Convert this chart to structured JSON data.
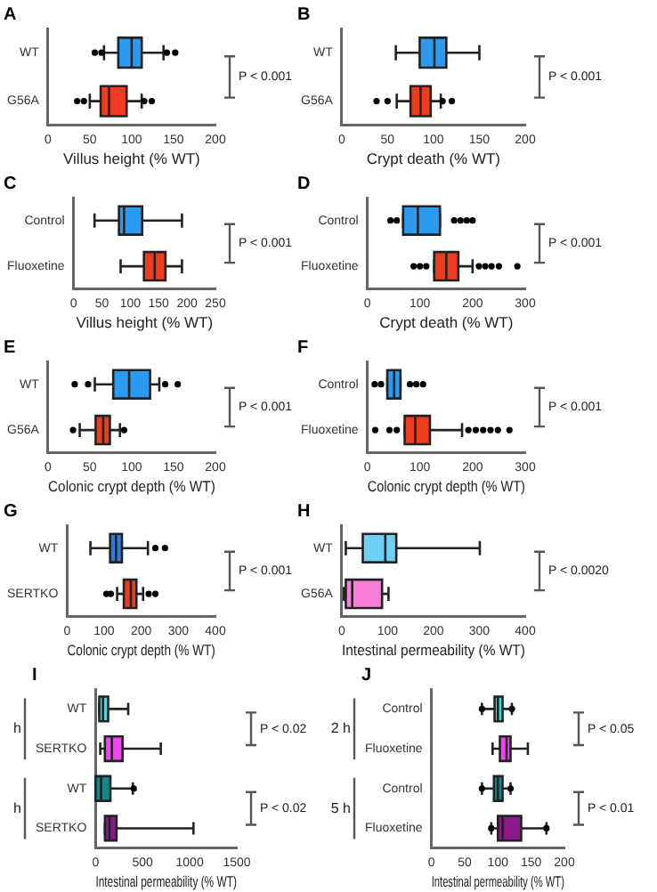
{
  "chart_data": [
    {
      "type": "box",
      "title": "A",
      "orientation": "horizontal",
      "categories": [
        "WT",
        "G56A"
      ],
      "colors": [
        "#2b9af3",
        "#f03c1e"
      ],
      "boxes": [
        {
          "low": 67,
          "q1": 84,
          "median": 100,
          "q3": 112,
          "high": 138,
          "outliers": [
            56,
            64,
            142,
            152
          ]
        },
        {
          "low": 50,
          "q1": 63,
          "median": 73,
          "q3": 94,
          "high": 112,
          "outliers": [
            35,
            43,
            115,
            124
          ]
        }
      ],
      "xlabel": "Villus height (% WT)",
      "xlim": [
        0,
        200
      ],
      "xticks": [
        0,
        50,
        100,
        150,
        200
      ],
      "annotations": [
        "P < 0.001"
      ]
    },
    {
      "type": "box",
      "title": "B",
      "orientation": "horizontal",
      "categories": [
        "WT",
        "G56A"
      ],
      "colors": [
        "#2b9af3",
        "#f03c1e"
      ],
      "boxes": [
        {
          "low": 59,
          "q1": 85,
          "median": 101,
          "q3": 114,
          "high": 150
        },
        {
          "low": 60,
          "q1": 75,
          "median": 86,
          "q3": 97,
          "high": 108,
          "outliers": [
            38,
            50,
            110,
            120
          ]
        }
      ],
      "xlabel": "Crypt death (% WT)",
      "xlim": [
        0,
        200
      ],
      "xticks": [
        0,
        50,
        100,
        150,
        200
      ],
      "annotations": [
        "P < 0.001"
      ]
    },
    {
      "type": "box",
      "title": "C",
      "orientation": "horizontal",
      "categories": [
        "Control",
        "Fluoxetine"
      ],
      "colors": [
        "#2b9af3",
        "#f03c1e"
      ],
      "boxes": [
        {
          "low": 37,
          "q1": 80,
          "median": 89,
          "q3": 121,
          "high": 191
        },
        {
          "low": 83,
          "q1": 124,
          "median": 143,
          "q3": 162,
          "high": 191
        }
      ],
      "xlabel": "Villus height (% WT)",
      "xlim": [
        0,
        250
      ],
      "xticks": [
        0,
        50,
        100,
        150,
        200,
        250
      ],
      "annotations": [
        "P < 0.001"
      ]
    },
    {
      "type": "box",
      "title": "D",
      "orientation": "horizontal",
      "categories": [
        "Control",
        "Fluoxetine"
      ],
      "colors": [
        "#2b9af3",
        "#f03c1e"
      ],
      "boxes": [
        {
          "low": 68,
          "q1": 68,
          "median": 96,
          "q3": 138,
          "high": 138,
          "outliers": [
            44,
            56,
            165,
            177,
            189,
            200
          ]
        },
        {
          "low": 127,
          "q1": 127,
          "median": 150,
          "q3": 173,
          "high": 200,
          "outliers": [
            88,
            100,
            112,
            212,
            224,
            236,
            250,
            285
          ]
        }
      ],
      "xlabel": "Crypt death (% WT)",
      "xlim": [
        0,
        300
      ],
      "xticks": [
        0,
        100,
        200,
        300
      ],
      "annotations": [
        "P < 0.001"
      ]
    },
    {
      "type": "box",
      "title": "E",
      "orientation": "horizontal",
      "categories": [
        "WT",
        "G56A"
      ],
      "colors": [
        "#2b9af3",
        "#f03c1e"
      ],
      "boxes": [
        {
          "low": 56,
          "q1": 78,
          "median": 97,
          "q3": 122,
          "high": 133,
          "outliers": [
            32,
            48,
            140,
            155
          ]
        },
        {
          "low": 38,
          "q1": 57,
          "median": 66,
          "q3": 74,
          "high": 86,
          "outliers": [
            30,
            91
          ]
        }
      ],
      "xlabel": "Colonic crypt depth (% WT)",
      "xlim": [
        0,
        200
      ],
      "xticks": [
        0,
        50,
        100,
        150,
        200
      ],
      "annotations": [
        "P < 0.001"
      ]
    },
    {
      "type": "box",
      "title": "F",
      "orientation": "horizontal",
      "categories": [
        "Control",
        "Fluoxetine"
      ],
      "colors": [
        "#2b9af3",
        "#f03c1e"
      ],
      "boxes": [
        {
          "low": 38,
          "q1": 38,
          "median": 51,
          "q3": 63,
          "high": 63,
          "outliers": [
            14,
            26,
            81,
            93,
            106
          ]
        },
        {
          "low": 71,
          "q1": 71,
          "median": 91,
          "q3": 119,
          "high": 180,
          "outliers": [
            15,
            42,
            56,
            192,
            206,
            220,
            234,
            248,
            270
          ]
        }
      ],
      "xlabel": "Colonic crypt depth (% WT)",
      "xlim": [
        0,
        300
      ],
      "xticks": [
        0,
        100,
        200,
        300
      ],
      "annotations": [
        "P < 0.001"
      ]
    },
    {
      "type": "box",
      "title": "G",
      "orientation": "horizontal",
      "categories": [
        "WT",
        "SERTKO"
      ],
      "colors": [
        "#2b7fd8",
        "#e8401c"
      ],
      "boxes": [
        {
          "low": 63,
          "q1": 116,
          "median": 132,
          "q3": 148,
          "high": 218,
          "outliers": [
            238,
            264
          ]
        },
        {
          "low": 135,
          "q1": 153,
          "median": 172,
          "q3": 187,
          "high": 205,
          "outliers": [
            106,
            118,
            220,
            238
          ]
        }
      ],
      "xlabel": "Colonic crypt depth (% WT)",
      "xlim": [
        0,
        400
      ],
      "xticks": [
        0,
        100,
        200,
        300,
        400
      ],
      "annotations": [
        "P < 0.001"
      ]
    },
    {
      "type": "box",
      "title": "H",
      "orientation": "horizontal",
      "categories": [
        "WT",
        "G56A"
      ],
      "colors": [
        "#6fd0f5",
        "#f77fd8"
      ],
      "boxes": [
        {
          "low": 9,
          "q1": 46,
          "median": 95,
          "q3": 119,
          "high": 301
        },
        {
          "low": 5,
          "q1": 9,
          "median": 23,
          "q3": 88,
          "high": 102
        }
      ],
      "xlabel": "Intestinal permeability (% WT)",
      "xlim": [
        0,
        400
      ],
      "xticks": [
        0,
        100,
        200,
        300,
        400
      ],
      "annotations": [
        "P < 0.0020"
      ]
    },
    {
      "type": "box",
      "title": "I",
      "orientation": "horizontal",
      "categories": [
        "WT",
        "SERTKO",
        "WT",
        "SERTKO"
      ],
      "colors": [
        "#33e0e8",
        "#f542f5",
        "#0d8a8a",
        "#8a1a8a"
      ],
      "boxes": [
        {
          "low": 40,
          "q1": 40,
          "median": 79,
          "q3": 134,
          "high": 347
        },
        {
          "low": 50,
          "q1": 99,
          "median": 173,
          "q3": 287,
          "high": 693
        },
        {
          "low": 0,
          "q1": 0,
          "median": 59,
          "q3": 158,
          "high": 396,
          "outliers": [
            406
          ]
        },
        {
          "low": 100,
          "q1": 100,
          "median": 149,
          "q3": 223,
          "high": 1040
        }
      ],
      "xlabel": "Intestinal permeability (% WT)",
      "xlim": [
        0,
        1500
      ],
      "xticks": [
        0,
        500,
        1000,
        1500
      ],
      "annotations": [
        "P < 0.02",
        "P < 0.02",
        "h",
        "h"
      ]
    },
    {
      "type": "box",
      "title": "J",
      "orientation": "horizontal",
      "categories": [
        "Control",
        "Fluoxetine",
        "Control",
        "Fluoxetine"
      ],
      "colors": [
        "#33e0e8",
        "#f542f5",
        "#0d8a8a",
        "#8a1a8a"
      ],
      "boxes": [
        {
          "low": 76,
          "q1": 95,
          "median": 100,
          "q3": 107,
          "high": 121,
          "outliers": [
            76,
            121
          ]
        },
        {
          "low": 92,
          "q1": 103,
          "median": 113,
          "q3": 119,
          "high": 145
        },
        {
          "low": 76,
          "q1": 94,
          "median": 100,
          "q3": 107,
          "high": 119,
          "outliers": [
            76,
            119
          ]
        },
        {
          "low": 90,
          "q1": 100,
          "median": 107,
          "q3": 135,
          "high": 173,
          "outliers": [
            90,
            173
          ]
        }
      ],
      "xlabel": "Intestinal permeability (% WT)",
      "xlim": [
        0,
        200
      ],
      "xticks": [
        0,
        50,
        100,
        150,
        200
      ],
      "annotations": [
        "P < 0.05",
        "P < 0.01",
        "2 h",
        "5 h"
      ]
    }
  ]
}
